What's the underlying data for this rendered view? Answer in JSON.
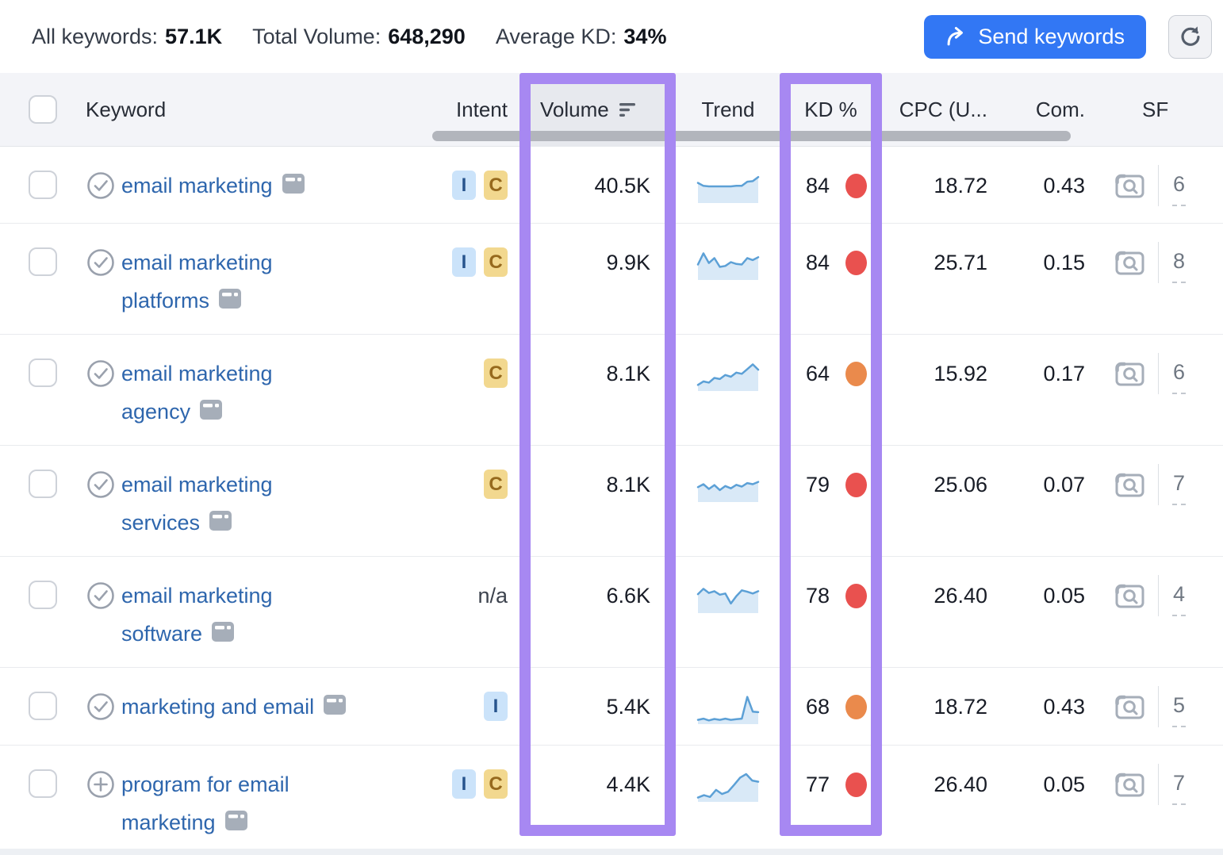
{
  "summary": {
    "all_keywords_label": "All keywords:",
    "all_keywords_value": "57.1K",
    "total_volume_label": "Total Volume:",
    "total_volume_value": "648,290",
    "average_kd_label": "Average KD:",
    "average_kd_value": "34%",
    "send_button_label": "Send keywords"
  },
  "columns": {
    "keyword": "Keyword",
    "intent": "Intent",
    "volume": "Volume",
    "trend": "Trend",
    "kd": "KD %",
    "cpc": "CPC (U...",
    "com": "Com.",
    "sf": "SF"
  },
  "colors": {
    "accent_purple": "#a788f2",
    "button_blue": "#3277f4",
    "link_blue": "#2e66ad",
    "kd_red": "#e9514f",
    "kd_orange": "#ea8a4c",
    "trend_line": "#5ca0d6",
    "trend_fill": "#d9e9f7"
  },
  "table": {
    "rows": [
      {
        "keyword": "email marketing",
        "keyword_line1": "email marketing",
        "keyword_line2": "",
        "row_icon": "check-circle",
        "intents": [
          "I",
          "C"
        ],
        "volume": "40.5K",
        "trend": [
          66,
          56,
          54,
          54,
          54,
          54,
          54,
          56,
          56,
          70,
          72,
          86
        ],
        "kd": "84",
        "kd_level": "red",
        "cpc": "18.72",
        "com": "0.43",
        "sf": "6"
      },
      {
        "keyword": "email marketing platforms",
        "keyword_line1": "email marketing",
        "keyword_line2": "platforms",
        "row_icon": "check-circle",
        "intents": [
          "I",
          "C"
        ],
        "volume": "9.9K",
        "trend": [
          50,
          88,
          55,
          72,
          42,
          45,
          58,
          52,
          50,
          72,
          65,
          75
        ],
        "kd": "84",
        "kd_level": "red",
        "cpc": "25.71",
        "com": "0.15",
        "sf": "8"
      },
      {
        "keyword": "email marketing agency",
        "keyword_line1": "email marketing",
        "keyword_line2": "agency",
        "row_icon": "check-circle",
        "intents": [
          "C"
        ],
        "volume": "8.1K",
        "trend": [
          18,
          30,
          26,
          42,
          38,
          52,
          46,
          60,
          56,
          72,
          88,
          70
        ],
        "kd": "64",
        "kd_level": "orange",
        "cpc": "15.92",
        "com": "0.17",
        "sf": "6"
      },
      {
        "keyword": "email marketing services",
        "keyword_line1": "email marketing",
        "keyword_line2": "services",
        "row_icon": "check-circle",
        "intents": [
          "C"
        ],
        "volume": "8.1K",
        "trend": [
          48,
          58,
          42,
          55,
          38,
          52,
          44,
          56,
          50,
          62,
          58,
          66
        ],
        "kd": "79",
        "kd_level": "red",
        "cpc": "25.06",
        "com": "0.07",
        "sf": "7"
      },
      {
        "keyword": "email marketing software",
        "keyword_line1": "email marketing",
        "keyword_line2": "software",
        "row_icon": "check-circle",
        "intents": [],
        "intent_na": "n/a",
        "volume": "6.6K",
        "trend": [
          62,
          80,
          66,
          72,
          60,
          64,
          30,
          55,
          75,
          70,
          64,
          72
        ],
        "kd": "78",
        "kd_level": "red",
        "cpc": "26.40",
        "com": "0.05",
        "sf": "4"
      },
      {
        "keyword": "marketing and email",
        "keyword_line1": "marketing and email",
        "keyword_line2": "",
        "row_icon": "check-circle",
        "intents": [
          "I"
        ],
        "volume": "5.4K",
        "trend": [
          12,
          16,
          10,
          15,
          12,
          16,
          12,
          14,
          16,
          90,
          40,
          38
        ],
        "kd": "68",
        "kd_level": "orange",
        "cpc": "18.72",
        "com": "0.43",
        "sf": "5"
      },
      {
        "keyword": "program for email marketing",
        "keyword_line1": "program for email",
        "keyword_line2": "marketing",
        "row_icon": "plus-circle",
        "intents": [
          "I",
          "C"
        ],
        "volume": "4.4K",
        "trend": [
          12,
          20,
          14,
          38,
          24,
          32,
          55,
          80,
          92,
          70,
          66
        ],
        "kd": "77",
        "kd_level": "red",
        "cpc": "26.40",
        "com": "0.05",
        "sf": "7"
      }
    ]
  }
}
